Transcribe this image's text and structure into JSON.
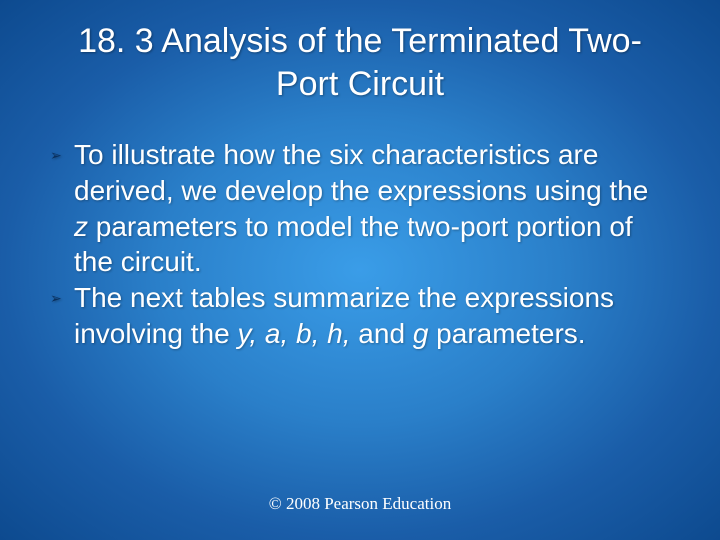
{
  "slide": {
    "title": "18. 3 Analysis of the Terminated Two-Port Circuit",
    "bullets": [
      {
        "pre": "To illustrate how the six characteristics are derived, we develop the expressions using the ",
        "em1": "z",
        "post": " parameters to model the two-port portion of the circuit."
      },
      {
        "pre": "The next tables summarize the expressions involving the ",
        "em1": "y, a, b, h,",
        "mid": " and ",
        "em2": "g",
        "post": " parameters."
      }
    ],
    "footer": "© 2008 Pearson Education"
  },
  "style": {
    "background_gradient": [
      "#3a9de8",
      "#2a7fc9",
      "#1a5da8",
      "#0d4a8f"
    ],
    "text_color": "#ffffff",
    "bullet_marker_color": "#0a2f5c",
    "title_fontsize": 34,
    "body_fontsize": 28,
    "footer_fontsize": 17,
    "footer_font": "Times New Roman"
  }
}
